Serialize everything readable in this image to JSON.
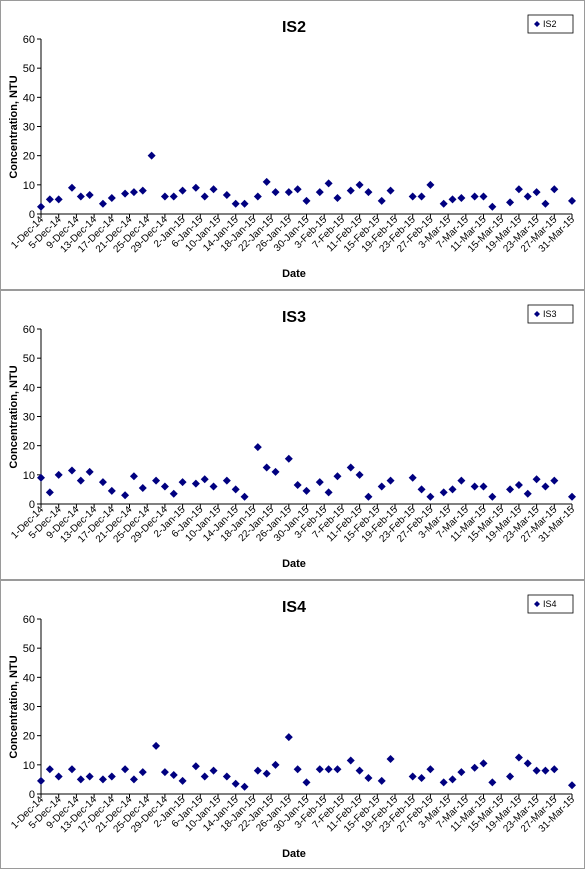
{
  "colors": {
    "marker": "#000080",
    "axis": "#000000",
    "frame": "#9a9a9a"
  },
  "x_ticks": [
    "1-Dec-14",
    "5-Dec-14",
    "9-Dec-14",
    "13-Dec-14",
    "17-Dec-14",
    "21-Dec-14",
    "25-Dec-14",
    "29-Dec-14",
    "2-Jan-15",
    "6-Jan-15",
    "10-Jan-15",
    "14-Jan-15",
    "18-Jan-15",
    "22-Jan-15",
    "26-Jan-15",
    "30-Jan-15",
    "3-Feb-15",
    "7-Feb-15",
    "11-Feb-15",
    "15-Feb-15",
    "19-Feb-15",
    "23-Feb-15",
    "27-Feb-15",
    "3-Mar-15",
    "7-Mar-15",
    "11-Mar-15",
    "15-Mar-15",
    "19-Mar-15",
    "23-Mar-15",
    "27-Mar-15",
    "31-Mar-15"
  ],
  "y_ticks": [
    "0",
    "10",
    "20",
    "30",
    "40",
    "50",
    "60"
  ],
  "chart_data": [
    {
      "type": "scatter",
      "title": "IS2",
      "xlabel": "Date",
      "ylabel": "Concentration, NTU",
      "ylim": [
        0,
        60
      ],
      "legend": "top-right",
      "grid": false,
      "series": [
        {
          "name": "IS2",
          "x": [
            "1-Dec-14",
            "3-Dec-14",
            "5-Dec-14",
            "8-Dec-14",
            "10-Dec-14",
            "12-Dec-14",
            "15-Dec-14",
            "17-Dec-14",
            "20-Dec-14",
            "22-Dec-14",
            "24-Dec-14",
            "26-Dec-14",
            "29-Dec-14",
            "31-Dec-14",
            "2-Jan-15",
            "5-Jan-15",
            "7-Jan-15",
            "9-Jan-15",
            "12-Jan-15",
            "14-Jan-15",
            "16-Jan-15",
            "19-Jan-15",
            "21-Jan-15",
            "23-Jan-15",
            "26-Jan-15",
            "28-Jan-15",
            "30-Jan-15",
            "2-Feb-15",
            "4-Feb-15",
            "6-Feb-15",
            "9-Feb-15",
            "11-Feb-15",
            "13-Feb-15",
            "16-Feb-15",
            "18-Feb-15",
            "23-Feb-15",
            "25-Feb-15",
            "27-Feb-15",
            "2-Mar-15",
            "4-Mar-15",
            "6-Mar-15",
            "9-Mar-15",
            "11-Mar-15",
            "13-Mar-15",
            "17-Mar-15",
            "19-Mar-15",
            "21-Mar-15",
            "23-Mar-15",
            "25-Mar-15",
            "27-Mar-15",
            "31-Mar-15"
          ],
          "y": [
            2.5,
            5,
            5,
            9,
            6,
            6.5,
            3.5,
            5.5,
            7,
            7.5,
            8,
            20,
            6,
            6,
            8,
            9,
            6,
            8.5,
            6.5,
            3.5,
            3.5,
            6,
            11,
            7.5,
            7.5,
            8.5,
            4.5,
            7.5,
            10.5,
            5.5,
            8,
            10,
            7.5,
            4.5,
            8,
            6,
            6,
            10,
            3.5,
            5,
            5.5,
            6,
            6,
            2.5,
            4,
            8.5,
            6,
            7.5,
            3.5,
            8.5,
            4.5
          ]
        }
      ]
    },
    {
      "type": "scatter",
      "title": "IS3",
      "xlabel": "Date",
      "ylabel": "Concentration, NTU",
      "ylim": [
        0,
        60
      ],
      "legend": "top-right",
      "grid": false,
      "series": [
        {
          "name": "IS3",
          "x": [
            "1-Dec-14",
            "3-Dec-14",
            "5-Dec-14",
            "8-Dec-14",
            "10-Dec-14",
            "12-Dec-14",
            "15-Dec-14",
            "17-Dec-14",
            "20-Dec-14",
            "22-Dec-14",
            "24-Dec-14",
            "27-Dec-14",
            "29-Dec-14",
            "31-Dec-14",
            "2-Jan-15",
            "5-Jan-15",
            "7-Jan-15",
            "9-Jan-15",
            "12-Jan-15",
            "14-Jan-15",
            "16-Jan-15",
            "19-Jan-15",
            "21-Jan-15",
            "23-Jan-15",
            "26-Jan-15",
            "28-Jan-15",
            "30-Jan-15",
            "2-Feb-15",
            "4-Feb-15",
            "6-Feb-15",
            "9-Feb-15",
            "11-Feb-15",
            "13-Feb-15",
            "16-Feb-15",
            "18-Feb-15",
            "23-Feb-15",
            "25-Feb-15",
            "27-Feb-15",
            "2-Mar-15",
            "4-Mar-15",
            "6-Mar-15",
            "9-Mar-15",
            "11-Mar-15",
            "13-Mar-15",
            "17-Mar-15",
            "19-Mar-15",
            "21-Mar-15",
            "23-Mar-15",
            "25-Mar-15",
            "27-Mar-15",
            "31-Mar-15"
          ],
          "y": [
            9,
            4,
            10,
            11.5,
            8,
            11,
            7.5,
            4.5,
            3,
            9.5,
            5.5,
            8,
            6,
            3.5,
            7.5,
            7,
            8.5,
            6,
            8,
            5,
            2.5,
            19.5,
            12.5,
            11,
            15.5,
            6.5,
            4.5,
            7.5,
            4,
            9.5,
            12.5,
            10,
            2.5,
            6,
            8,
            9,
            5,
            2.5,
            4,
            5,
            8,
            6,
            6,
            2.5,
            5,
            6.5,
            3.5,
            8.5,
            6,
            8,
            2.5
          ]
        }
      ]
    },
    {
      "type": "scatter",
      "title": "IS4",
      "xlabel": "Date",
      "ylabel": "Concentration, NTU",
      "ylim": [
        0,
        60
      ],
      "legend": "top-right",
      "grid": false,
      "series": [
        {
          "name": "IS4",
          "x": [
            "1-Dec-14",
            "3-Dec-14",
            "5-Dec-14",
            "8-Dec-14",
            "10-Dec-14",
            "12-Dec-14",
            "15-Dec-14",
            "17-Dec-14",
            "20-Dec-14",
            "22-Dec-14",
            "24-Dec-14",
            "27-Dec-14",
            "29-Dec-14",
            "31-Dec-14",
            "2-Jan-15",
            "5-Jan-15",
            "7-Jan-15",
            "9-Jan-15",
            "12-Jan-15",
            "14-Jan-15",
            "16-Jan-15",
            "19-Jan-15",
            "21-Jan-15",
            "23-Jan-15",
            "26-Jan-15",
            "28-Jan-15",
            "30-Jan-15",
            "2-Feb-15",
            "4-Feb-15",
            "6-Feb-15",
            "9-Feb-15",
            "11-Feb-15",
            "13-Feb-15",
            "16-Feb-15",
            "18-Feb-15",
            "23-Feb-15",
            "25-Feb-15",
            "27-Feb-15",
            "2-Mar-15",
            "4-Mar-15",
            "6-Mar-15",
            "9-Mar-15",
            "11-Mar-15",
            "13-Mar-15",
            "17-Mar-15",
            "19-Mar-15",
            "21-Mar-15",
            "23-Mar-15",
            "25-Mar-15",
            "27-Mar-15",
            "31-Mar-15"
          ],
          "y": [
            4.5,
            8.5,
            6,
            8.5,
            5,
            6,
            5,
            6,
            8.5,
            5,
            7.5,
            16.5,
            7.5,
            6.5,
            4.5,
            9.5,
            6,
            8,
            6,
            3.5,
            2.5,
            8,
            7,
            10,
            19.5,
            8.5,
            4,
            8.5,
            8.5,
            8.5,
            11.5,
            8,
            5.5,
            4.5,
            12,
            6,
            5.5,
            8.5,
            4,
            5,
            7.5,
            9,
            10.5,
            4,
            6,
            12.5,
            10.5,
            8,
            8,
            8.5,
            3
          ]
        }
      ]
    }
  ]
}
